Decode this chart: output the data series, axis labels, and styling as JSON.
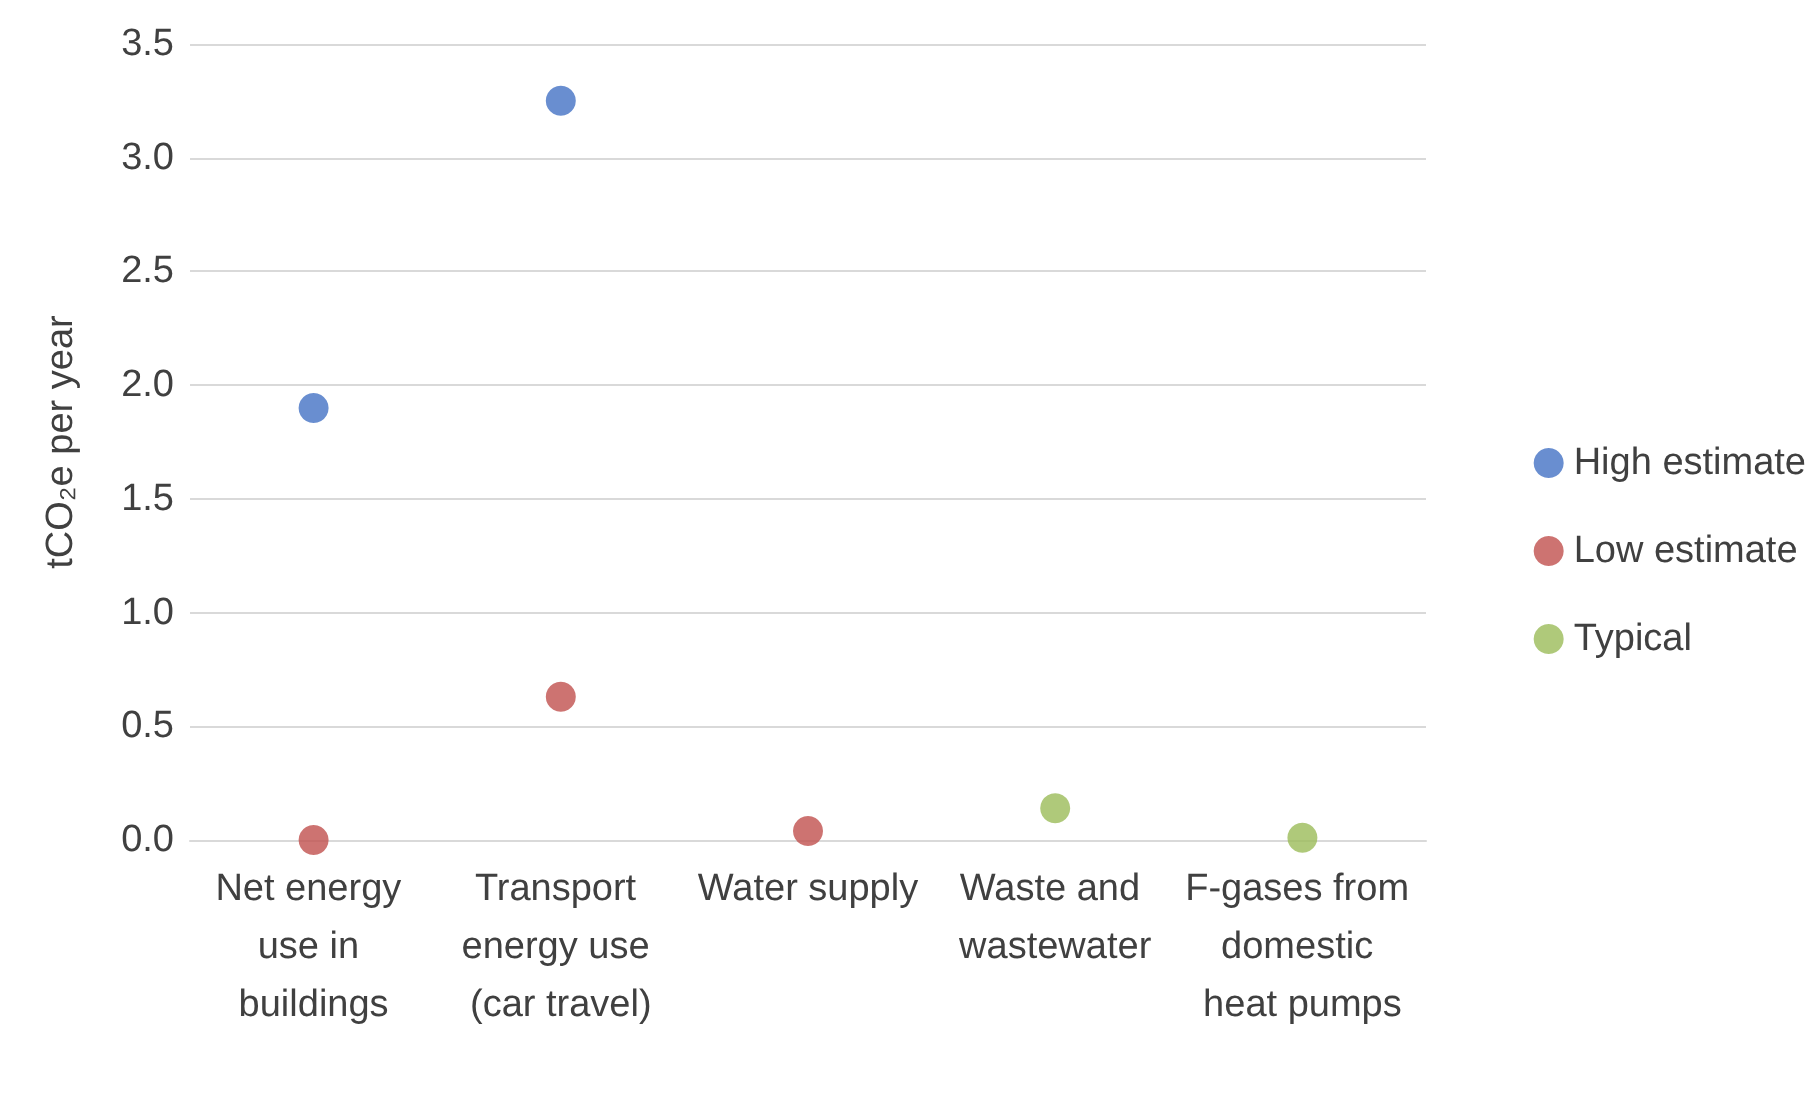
{
  "chart_data": {
    "type": "scatter",
    "ylabel": "tCO₂e per year",
    "categories": [
      "Net energy use in buildings",
      "Transport energy use (car travel)",
      "Water supply",
      "Waste and wastewater",
      "F-gases from domestic heat pumps"
    ],
    "series": [
      {
        "name": "High estimate",
        "color": "#4472c4",
        "values": [
          1.9,
          3.25,
          null,
          null,
          null
        ]
      },
      {
        "name": "Low estimate",
        "color": "#c0504d",
        "values": [
          0.0,
          0.63,
          0.04,
          null,
          null
        ]
      },
      {
        "name": "Typical",
        "color": "#9bbb59",
        "values": [
          null,
          null,
          null,
          0.14,
          0.01
        ]
      }
    ],
    "ylim": [
      0,
      3.5
    ],
    "yticks": [
      {
        "value": 0,
        "label": "0.0"
      },
      {
        "value": 0.5,
        "label": "0.5"
      },
      {
        "value": 1,
        "label": "1.0"
      },
      {
        "value": 1.5,
        "label": "1.5"
      },
      {
        "value": 2,
        "label": "2.0"
      },
      {
        "value": 2.5,
        "label": "2.5"
      },
      {
        "value": 3,
        "label": "3.0"
      },
      {
        "value": 3.5,
        "label": "3.5"
      }
    ],
    "grid": "y",
    "legend": "right",
    "marker": "circle"
  }
}
